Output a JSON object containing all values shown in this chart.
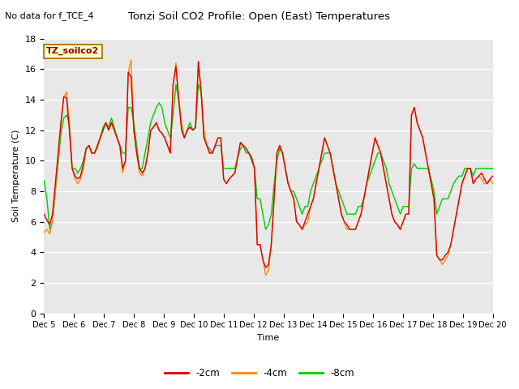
{
  "title": "Tonzi Soil CO2 Profile: Open (East) Temperatures",
  "subtitle": "No data for f_TCE_4",
  "ylabel": "Soil Temperature (C)",
  "xlabel": "Time",
  "site_label": "TZ_soilco2",
  "ylim": [
    0,
    18
  ],
  "background_color": "#ffffff",
  "plot_bg_color": "#e8e8e8",
  "grid_color": "#ffffff",
  "xtick_labels": [
    "Dec 5",
    "Dec 6",
    "Dec 7",
    "Dec 8",
    "Dec 9",
    "Dec 10",
    "Dec 11",
    "Dec 12",
    "Dec 13",
    "Dec 14",
    "Dec 15",
    "Dec 16",
    "Dec 17",
    "Dec 18",
    "Dec 19",
    "Dec 20"
  ],
  "legend_entries": [
    "-2cm",
    "-4cm",
    "-8cm"
  ],
  "line_colors": [
    "#dd0000",
    "#ff8800",
    "#00cc00"
  ],
  "t_2cm": [
    6.5,
    6.1,
    5.8,
    6.5,
    8.5,
    10.5,
    12.5,
    14.2,
    14.1,
    12.0,
    9.5,
    9.0,
    8.8,
    9.0,
    9.8,
    10.8,
    11.0,
    10.5,
    10.5,
    11.0,
    11.5,
    12.0,
    12.5,
    12.0,
    12.5,
    12.0,
    11.5,
    11.0,
    9.5,
    10.0,
    15.8,
    15.5,
    12.0,
    10.5,
    9.5,
    9.2,
    9.5,
    10.5,
    12.0,
    12.2,
    12.5,
    12.0,
    11.8,
    11.5,
    11.0,
    10.5,
    15.0,
    16.2,
    14.0,
    12.0,
    11.5,
    12.0,
    12.2,
    12.0,
    12.2,
    16.5,
    14.5,
    11.5,
    11.0,
    10.5,
    10.5,
    11.0,
    11.5,
    11.5,
    8.8,
    8.5,
    8.8,
    9.0,
    9.2,
    10.2,
    11.2,
    11.0,
    10.8,
    10.5,
    10.2,
    9.5,
    4.5,
    4.5,
    3.5,
    3.0,
    3.2,
    4.5,
    7.5,
    10.5,
    11.0,
    10.5,
    9.5,
    8.5,
    8.0,
    7.5,
    6.0,
    5.8,
    5.5,
    6.0,
    6.5,
    7.0,
    7.5,
    8.5,
    9.5,
    10.5,
    11.5,
    11.0,
    10.5,
    9.5,
    8.5,
    7.5,
    6.5,
    6.0,
    5.8,
    5.5,
    5.5,
    5.5,
    6.0,
    6.5,
    7.5,
    8.5,
    9.5,
    10.5,
    11.5,
    11.0,
    10.5,
    9.5,
    8.5,
    7.5,
    6.5,
    6.0,
    5.8,
    5.5,
    6.0,
    6.5,
    6.5,
    13.0,
    13.5,
    12.5,
    12.0,
    11.5,
    10.5,
    9.5,
    8.5,
    7.5,
    3.8,
    3.5,
    3.5,
    3.8,
    4.0,
    4.5,
    5.5,
    6.5,
    7.5,
    8.5,
    9.0,
    9.5,
    9.5,
    8.5,
    8.8,
    9.0,
    9.2,
    8.8,
    8.5,
    8.8,
    9.0
  ],
  "t_4cm": [
    5.3,
    5.5,
    5.2,
    6.0,
    8.0,
    10.0,
    12.5,
    14.2,
    14.5,
    12.5,
    9.5,
    8.8,
    8.5,
    8.8,
    9.5,
    10.8,
    11.0,
    10.5,
    10.5,
    10.8,
    11.5,
    12.0,
    12.5,
    12.0,
    12.5,
    12.0,
    11.5,
    11.0,
    9.2,
    10.0,
    15.8,
    16.6,
    12.0,
    10.5,
    9.2,
    9.0,
    9.5,
    10.5,
    12.0,
    12.2,
    12.5,
    12.0,
    11.8,
    11.5,
    11.0,
    10.5,
    15.0,
    16.4,
    14.0,
    12.5,
    11.5,
    12.0,
    12.2,
    12.0,
    12.2,
    16.5,
    14.5,
    12.0,
    11.0,
    10.5,
    10.5,
    11.0,
    11.5,
    11.5,
    8.8,
    8.5,
    8.8,
    9.0,
    9.2,
    10.2,
    11.2,
    11.0,
    10.8,
    10.5,
    10.2,
    9.5,
    4.5,
    4.5,
    3.5,
    2.5,
    2.8,
    4.5,
    7.5,
    10.5,
    11.0,
    10.5,
    9.5,
    8.5,
    8.0,
    7.5,
    6.0,
    5.8,
    5.5,
    5.8,
    6.0,
    7.0,
    7.5,
    8.5,
    9.5,
    10.5,
    11.5,
    11.0,
    10.5,
    9.5,
    8.5,
    7.5,
    6.5,
    6.0,
    5.5,
    5.5,
    5.5,
    5.5,
    6.0,
    6.5,
    7.5,
    8.5,
    9.5,
    10.5,
    11.5,
    11.0,
    10.5,
    9.5,
    8.5,
    7.5,
    6.5,
    6.0,
    5.8,
    5.5,
    6.0,
    6.5,
    6.5,
    13.0,
    13.5,
    12.5,
    12.0,
    11.5,
    10.5,
    9.5,
    8.5,
    7.5,
    3.8,
    3.5,
    3.2,
    3.5,
    3.8,
    4.5,
    5.5,
    6.5,
    7.5,
    8.5,
    9.0,
    9.5,
    9.5,
    8.5,
    8.8,
    9.0,
    8.8,
    8.5,
    8.5,
    8.8,
    8.5
  ],
  "t_8cm": [
    8.7,
    7.5,
    5.5,
    6.0,
    8.0,
    9.8,
    11.8,
    12.8,
    13.0,
    12.5,
    9.5,
    9.5,
    9.2,
    9.5,
    10.0,
    10.8,
    11.0,
    10.5,
    10.5,
    11.0,
    11.5,
    12.2,
    12.5,
    12.2,
    12.8,
    12.2,
    11.5,
    11.0,
    10.5,
    10.5,
    13.5,
    13.5,
    12.5,
    11.0,
    9.5,
    9.5,
    10.5,
    11.5,
    12.5,
    13.0,
    13.5,
    13.8,
    13.5,
    12.5,
    12.0,
    11.5,
    13.0,
    15.0,
    14.0,
    12.5,
    11.5,
    12.0,
    12.5,
    12.0,
    12.2,
    15.0,
    14.5,
    11.5,
    11.0,
    10.8,
    10.5,
    11.0,
    11.0,
    11.0,
    9.5,
    9.5,
    9.5,
    9.5,
    9.5,
    10.2,
    10.8,
    11.0,
    10.5,
    10.5,
    10.0,
    9.5,
    7.5,
    7.5,
    6.5,
    5.5,
    5.8,
    6.5,
    8.5,
    10.0,
    10.8,
    10.5,
    9.5,
    8.5,
    8.0,
    8.0,
    7.5,
    7.0,
    6.5,
    7.0,
    7.0,
    8.0,
    8.5,
    9.0,
    9.5,
    10.0,
    10.5,
    10.5,
    10.5,
    9.5,
    8.5,
    8.0,
    7.5,
    7.0,
    6.5,
    6.5,
    6.5,
    6.5,
    7.0,
    7.0,
    7.5,
    8.5,
    9.0,
    9.5,
    10.0,
    10.5,
    10.5,
    10.0,
    9.5,
    8.5,
    8.0,
    7.5,
    7.0,
    6.5,
    7.0,
    7.0,
    7.0,
    9.5,
    9.8,
    9.5,
    9.5,
    9.5,
    9.5,
    9.5,
    8.8,
    8.0,
    6.5,
    7.0,
    7.5,
    7.5,
    7.5,
    8.0,
    8.5,
    8.8,
    9.0,
    9.0,
    9.5,
    9.5,
    9.5,
    9.0,
    9.5,
    9.5,
    9.5,
    9.5,
    9.5,
    9.5,
    9.5
  ]
}
